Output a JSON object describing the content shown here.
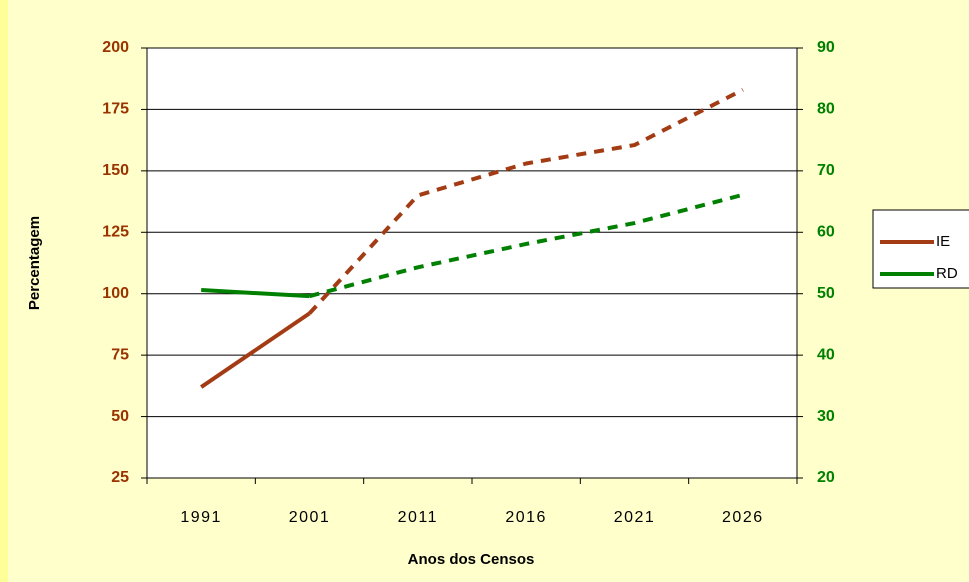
{
  "chart_data": {
    "type": "line",
    "xlabel": "Anos dos Censos",
    "ylabel": "Percentagem",
    "categories": [
      "1991",
      "2001",
      "2011",
      "2016",
      "2021",
      "2026"
    ],
    "series": [
      {
        "name": "IE",
        "color": "#a33c14",
        "axis": "y",
        "dash_from": 1,
        "values": [
          62,
          92,
          140,
          153,
          160.5,
          183
        ]
      },
      {
        "name": "RD",
        "color": "#008000",
        "axis": "y2",
        "dash_from": 1,
        "values": [
          50.6,
          49.6,
          54.3,
          58.1,
          61.5,
          66.1
        ]
      }
    ],
    "ylim": [
      25,
      200
    ],
    "yticks": [
      25,
      50,
      75,
      100,
      125,
      150,
      175,
      200
    ],
    "ycolor": "#993300",
    "y2lim": [
      20,
      90
    ],
    "y2ticks": [
      20,
      30,
      40,
      50,
      60,
      70,
      80,
      90
    ],
    "y2color": "#008000",
    "grid": true,
    "legend": "right"
  }
}
